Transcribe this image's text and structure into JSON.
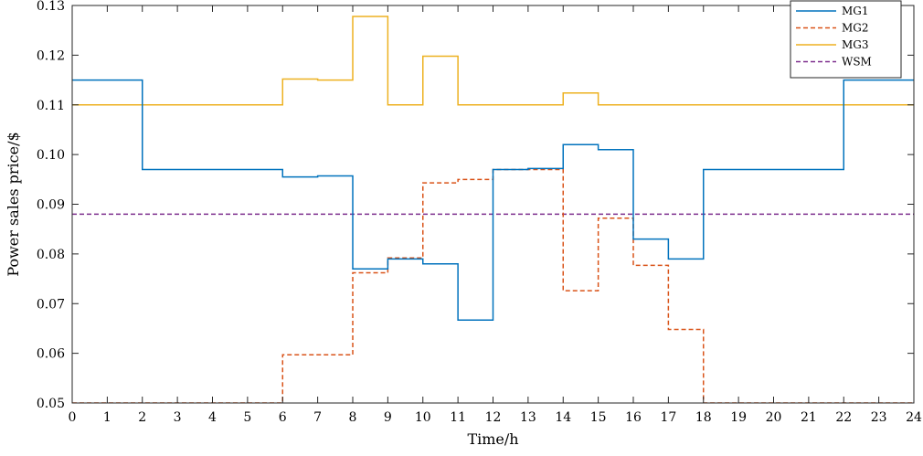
{
  "chart_data": {
    "type": "line",
    "xlabel": "Time/h",
    "ylabel": "Power sales price/$",
    "xlim": [
      0,
      24
    ],
    "ylim": [
      0.05,
      0.13
    ],
    "x_ticks": [
      "0",
      "1",
      "2",
      "3",
      "4",
      "5",
      "6",
      "7",
      "8",
      "9",
      "10",
      "11",
      "12",
      "13",
      "14",
      "15",
      "16",
      "17",
      "18",
      "19",
      "20",
      "21",
      "22",
      "23",
      "24"
    ],
    "y_ticks": [
      "0.05",
      "0.06",
      "0.07",
      "0.08",
      "0.09",
      "0.10",
      "0.11",
      "0.12",
      "0.13"
    ],
    "grid": false,
    "legend_position": "top-right",
    "x": [
      0,
      1,
      2,
      3,
      4,
      5,
      6,
      7,
      8,
      9,
      10,
      11,
      12,
      13,
      14,
      15,
      16,
      17,
      18,
      19,
      20,
      21,
      22,
      23
    ],
    "series": [
      {
        "name": "MG1",
        "color": "#0072BD",
        "dash": "solid",
        "values": [
          0.115,
          0.115,
          0.097,
          0.097,
          0.097,
          0.097,
          0.0955,
          0.0957,
          0.077,
          0.079,
          0.078,
          0.0667,
          0.097,
          0.0972,
          0.102,
          0.101,
          0.083,
          0.079,
          0.097,
          0.097,
          0.097,
          0.097,
          0.115,
          0.115
        ]
      },
      {
        "name": "MG2",
        "color": "#D95319",
        "dash": "dashed",
        "values": [
          0.05,
          0.05,
          0.05,
          0.05,
          0.05,
          0.05,
          0.0597,
          0.0597,
          0.0762,
          0.0792,
          0.0943,
          0.095,
          0.097,
          0.097,
          0.0726,
          0.0872,
          0.0777,
          0.0648,
          0.05,
          0.05,
          0.05,
          0.05,
          0.05,
          0.05
        ]
      },
      {
        "name": "MG3",
        "color": "#EDB120",
        "dash": "solid",
        "values": [
          0.11,
          0.11,
          0.11,
          0.11,
          0.11,
          0.11,
          0.1152,
          0.115,
          0.1278,
          0.11,
          0.1198,
          0.11,
          0.11,
          0.11,
          0.1124,
          0.11,
          0.11,
          0.11,
          0.11,
          0.11,
          0.11,
          0.11,
          0.11,
          0.11
        ]
      },
      {
        "name": "WSM",
        "color": "#7E2F8E",
        "dash": "dashed",
        "values": [
          0.088,
          0.088,
          0.088,
          0.088,
          0.088,
          0.088,
          0.088,
          0.088,
          0.088,
          0.088,
          0.088,
          0.088,
          0.088,
          0.088,
          0.088,
          0.088,
          0.088,
          0.088,
          0.088,
          0.088,
          0.088,
          0.088,
          0.088,
          0.088
        ]
      }
    ]
  }
}
